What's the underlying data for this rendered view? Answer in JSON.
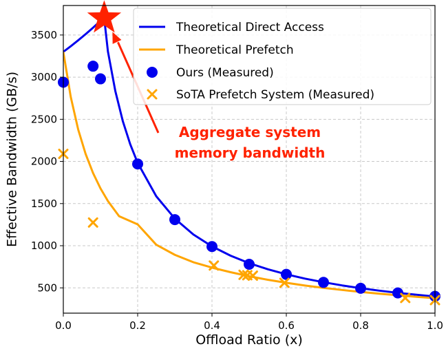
{
  "chart_data": {
    "type": "line",
    "title": "",
    "xlabel": "Offload Ratio (x)",
    "ylabel": "Effective Bandwidth (GB/s)",
    "xlim": [
      0.0,
      1.0
    ],
    "ylim": [
      200,
      3850
    ],
    "xticks": [
      0.0,
      0.2,
      0.4,
      0.6,
      0.8,
      1.0
    ],
    "yticks": [
      500,
      1000,
      1500,
      2000,
      2500,
      3000,
      3500
    ],
    "grid": true,
    "legend_position": "top-right",
    "colors": {
      "direct": "#0000ee",
      "prefetch": "#ffa500",
      "ours_points": "#0000ee",
      "sota_points": "#ffa500",
      "star": "#ff2200",
      "annotation": "#ff2200"
    },
    "series": [
      {
        "name": "Theoretical Direct Access",
        "kind": "line",
        "color": "#0000ee",
        "x": [
          0.0,
          0.02,
          0.04,
          0.06,
          0.08,
          0.1,
          0.11,
          0.12,
          0.14,
          0.16,
          0.18,
          0.2,
          0.25,
          0.3,
          0.35,
          0.4,
          0.45,
          0.5,
          0.55,
          0.6,
          0.65,
          0.7,
          0.75,
          0.8,
          0.85,
          0.9,
          0.95,
          1.0
        ],
        "y": [
          3300,
          3367,
          3437,
          3510,
          3587,
          3667,
          3700,
          3305,
          2833,
          2479,
          2204,
          1983,
          1587,
          1322,
          1133,
          992,
          882,
          793,
          721,
          661,
          610,
          567,
          529,
          496,
          467,
          441,
          418,
          397
        ]
      },
      {
        "name": "Theoretical Prefetch",
        "kind": "line",
        "color": "#ffa500",
        "x": [
          0.0,
          0.02,
          0.04,
          0.06,
          0.08,
          0.1,
          0.12,
          0.15,
          0.2,
          0.25,
          0.3,
          0.35,
          0.4,
          0.45,
          0.5,
          0.55,
          0.6,
          0.65,
          0.7,
          0.75,
          0.8,
          0.85,
          0.9,
          0.95,
          1.0
        ],
        "y": [
          3300,
          2765,
          2379,
          2089,
          1862,
          1680,
          1530,
          1350,
          1253,
          1012,
          892,
          804,
          740,
          686,
          638,
          596,
          560,
          528,
          500,
          475,
          452,
          431,
          412,
          394,
          378
        ]
      },
      {
        "name": "Ours (Measured)",
        "kind": "scatter",
        "marker": "circle",
        "color": "#0000ee",
        "x": [
          0.0,
          0.08,
          0.1,
          0.2,
          0.3,
          0.4,
          0.5,
          0.6,
          0.7,
          0.8,
          0.9,
          1.0
        ],
        "y": [
          2940,
          3130,
          2980,
          1970,
          1310,
          990,
          780,
          660,
          565,
          495,
          440,
          400
        ]
      },
      {
        "name": "SoTA Prefetch System (Measured)",
        "kind": "scatter",
        "marker": "x",
        "color": "#ffa500",
        "x": [
          0.0,
          0.08,
          0.405,
          0.485,
          0.495,
          0.51,
          0.595,
          0.92,
          1.0
        ],
        "y": [
          2090,
          1275,
          765,
          655,
          650,
          645,
          560,
          380,
          355
        ]
      }
    ],
    "star": {
      "x": 0.11,
      "y": 3700
    },
    "annotations": [
      {
        "lines": [
          "Aggregate system",
          "memory bandwidth"
        ],
        "color": "#ff2200"
      }
    ]
  }
}
